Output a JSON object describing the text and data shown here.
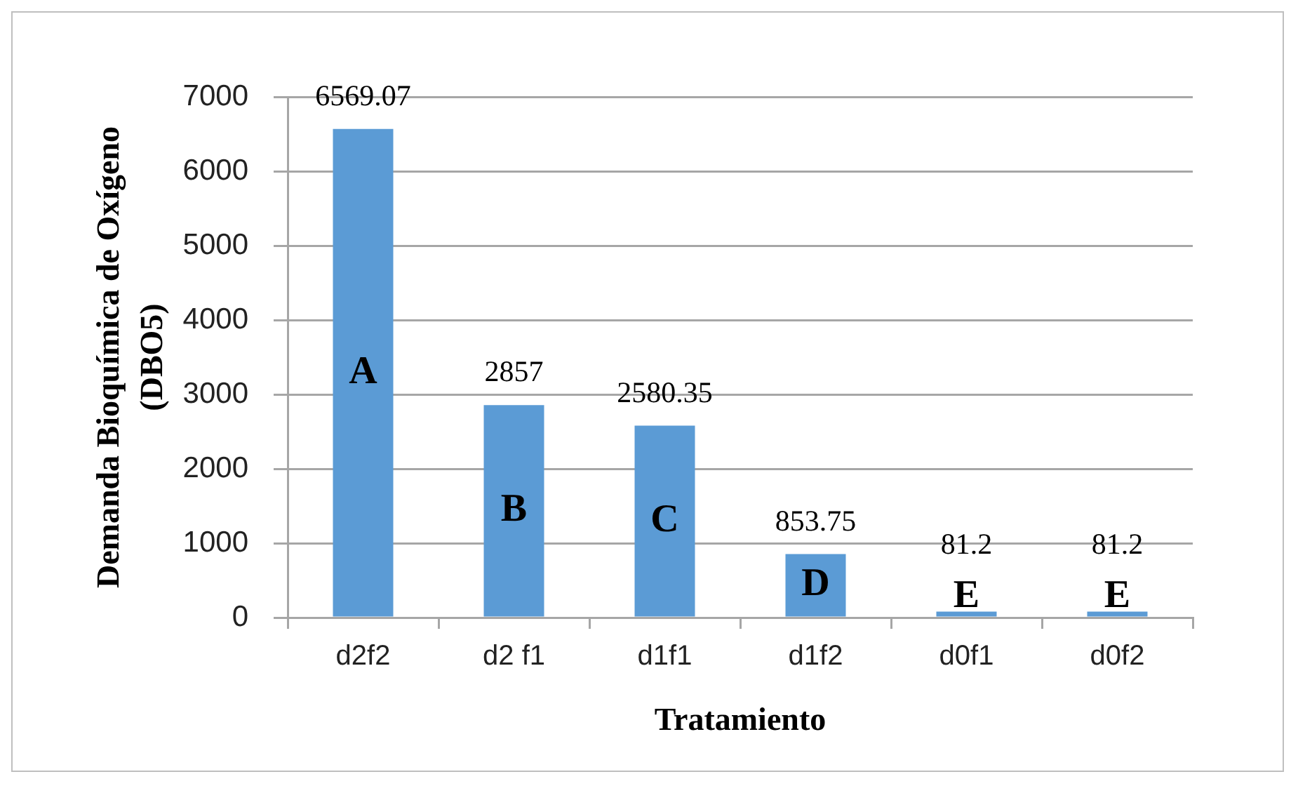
{
  "chart_data": {
    "type": "bar",
    "xlabel": "Tratamiento",
    "ylabel": "Demanda Bioquímica de Oxígeno (DBO5)",
    "categories": [
      "d2f2",
      "d2 f1",
      "d1f1",
      "d1f2",
      "d0f1",
      "d0f2"
    ],
    "values": [
      6569.07,
      2857,
      2580.35,
      853.75,
      81.2,
      81.2
    ],
    "color": "#5b9bd5",
    "ylim": [
      0,
      7000
    ],
    "yticks": [
      0,
      1000,
      2000,
      3000,
      4000,
      5000,
      6000,
      7000
    ],
    "grid": "y",
    "data_labels": true,
    "annotations": [
      "A",
      "B",
      "C",
      "D",
      "E",
      "E"
    ]
  }
}
